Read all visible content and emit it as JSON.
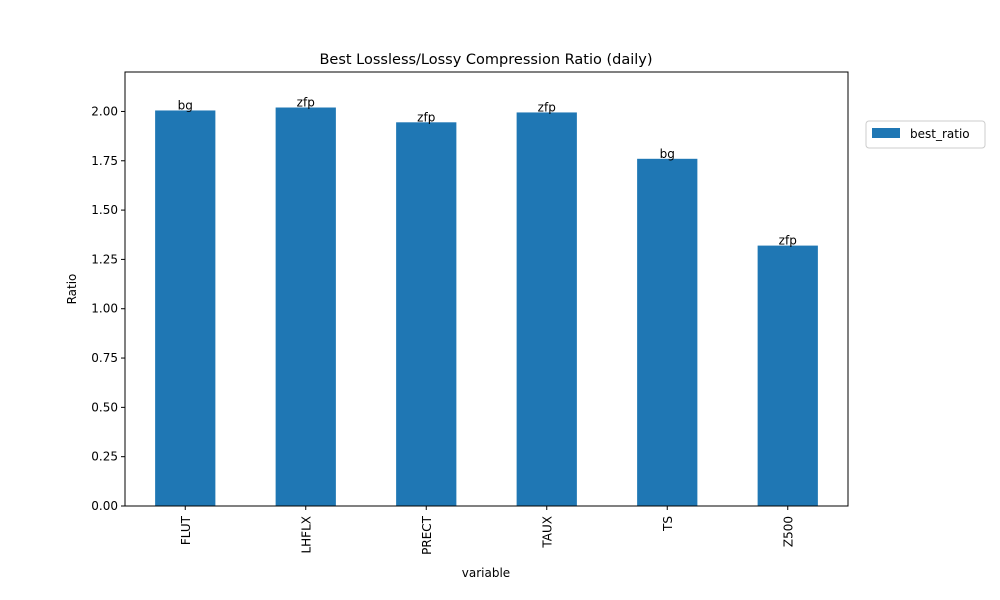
{
  "chart_data": {
    "type": "bar",
    "title": "Best Lossless/Lossy Compression Ratio (daily)",
    "xlabel": "variable",
    "ylabel": "Ratio",
    "categories": [
      "FLUT",
      "LHFLX",
      "PRECT",
      "TAUX",
      "TS",
      "Z500"
    ],
    "series": [
      {
        "name": "best_ratio",
        "color": "#1f77b4",
        "values": [
          2.005,
          2.02,
          1.945,
          1.995,
          1.76,
          1.32
        ]
      }
    ],
    "bar_labels": [
      "bg",
      "zfp",
      "zfp",
      "zfp",
      "bg",
      "zfp"
    ],
    "ylim": [
      0,
      2.2
    ],
    "yticks": [
      0.0,
      0.25,
      0.5,
      0.75,
      1.0,
      1.25,
      1.5,
      1.75,
      2.0
    ],
    "ytick_labels": [
      "0.00",
      "0.25",
      "0.50",
      "0.75",
      "1.00",
      "1.25",
      "1.50",
      "1.75",
      "2.00"
    ],
    "grid": false,
    "legend_position": "outside-right-top"
  }
}
